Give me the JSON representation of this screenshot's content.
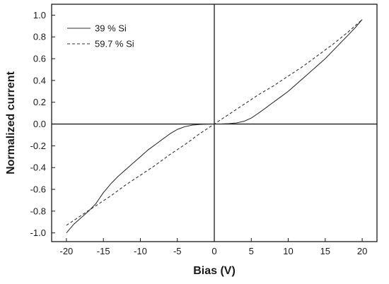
{
  "chart_data": {
    "type": "line",
    "xlabel": "Bias (V)",
    "ylabel": "Normalized current",
    "xlim": [
      -22,
      22
    ],
    "ylim": [
      -1.08,
      1.1
    ],
    "x_ticks": [
      -20,
      -15,
      -10,
      -5,
      0,
      5,
      10,
      15,
      20
    ],
    "y_ticks": [
      -1.0,
      -0.8,
      -0.6,
      -0.4,
      -0.2,
      0.0,
      0.2,
      0.4,
      0.6,
      0.8,
      1.0
    ],
    "x_tick_labels": [
      "-20",
      "-15",
      "-10",
      "-5",
      "0",
      "5",
      "10",
      "15",
      "20"
    ],
    "y_tick_labels": [
      "-1.0",
      "-0.8",
      "-0.6",
      "-0.4",
      "-0.2",
      "0.0",
      "0.2",
      "0.4",
      "0.6",
      "0.8",
      "1.0"
    ],
    "grid": false,
    "zero_lines": true,
    "legend_position": "top-left",
    "series": [
      {
        "name": "39 % Si",
        "line_style": "solid",
        "color": "#333333",
        "x": [
          -20,
          -19,
          -18,
          -17,
          -16,
          -15,
          -14,
          -13,
          -12,
          -11,
          -10,
          -9,
          -8,
          -7,
          -6,
          -5,
          -4,
          -3,
          -2,
          -1,
          0,
          1,
          2,
          3,
          4,
          5,
          6,
          7,
          8,
          9,
          10,
          11,
          12,
          13,
          14,
          15,
          16,
          17,
          18,
          19,
          20
        ],
        "y": [
          -1.0,
          -0.92,
          -0.86,
          -0.8,
          -0.73,
          -0.63,
          -0.55,
          -0.48,
          -0.42,
          -0.36,
          -0.3,
          -0.24,
          -0.19,
          -0.14,
          -0.09,
          -0.05,
          -0.025,
          -0.01,
          -0.004,
          -0.001,
          0.0,
          0.001,
          0.004,
          0.01,
          0.025,
          0.055,
          0.1,
          0.15,
          0.2,
          0.25,
          0.3,
          0.36,
          0.42,
          0.48,
          0.54,
          0.6,
          0.67,
          0.74,
          0.81,
          0.88,
          0.96
        ]
      },
      {
        "name": "59.7 % Si",
        "line_style": "dashed",
        "color": "#333333",
        "x": [
          -20,
          -18,
          -16,
          -14,
          -12,
          -10,
          -8,
          -6,
          -4,
          -2,
          0,
          2,
          4,
          6,
          8,
          10,
          12,
          14,
          16,
          18,
          20
        ],
        "y": [
          -0.93,
          -0.84,
          -0.75,
          -0.66,
          -0.56,
          -0.47,
          -0.38,
          -0.28,
          -0.19,
          -0.09,
          0.0,
          0.09,
          0.18,
          0.27,
          0.35,
          0.44,
          0.53,
          0.63,
          0.73,
          0.84,
          0.96
        ]
      }
    ]
  }
}
